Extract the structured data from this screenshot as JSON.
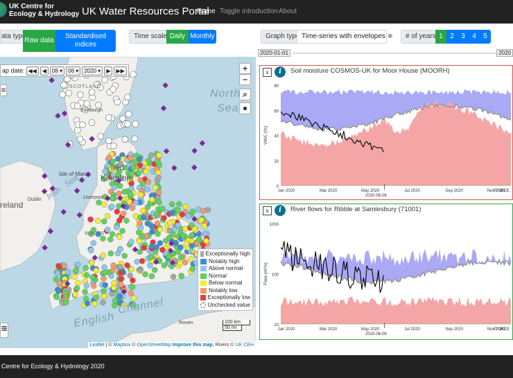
{
  "brand": {
    "line1": "UK Centre for",
    "line2": "Ecology & Hydrology"
  },
  "title": "UK Water Resources Portal",
  "nav": {
    "home": "Home",
    "toggle": "Toggle introduction",
    "about": "About"
  },
  "controls": {
    "data_type_label": "ata type:",
    "raw": "Raw data",
    "standardised": "Standardised indices",
    "timescale_label": "Time scale:",
    "daily": "Daily",
    "monthly": "Monthly",
    "graph_type_label": "Graph type:",
    "graph_type_value": "Time-series with envelopes ≑",
    "years_label": "# of years:",
    "years": [
      "1",
      "2",
      "3",
      "4",
      "5"
    ]
  },
  "date_range": {
    "start": "2020-01-01",
    "end": "2020"
  },
  "map": {
    "date_label": "ap date:",
    "day": "06 ▾",
    "month": "06 ▾",
    "year": "2020 ▾",
    "labels": {
      "north": "North",
      "sea": "Sea",
      "scotland": "SCOTLAND",
      "edinburgh": "Edinburgh",
      "isle_of_man": "Isle of Man",
      "irish": "Irish",
      "sea2": "Sea",
      "dublin": "Dublin",
      "ireland": "reland",
      "wales": "WALES",
      "english": "English",
      "channel": "Channel",
      "rouen": "Rouen",
      "united": "ited",
      "kingdom": "Kingdom",
      "liverpool": "Liverpool"
    },
    "scale": {
      "km": "100 km",
      "mi": "50 mi"
    },
    "attribution": {
      "leaflet": "Leaflet",
      "sep1": " | © ",
      "mapbox": "Mapbox",
      "sep2": " © ",
      "osm": "OpenStreetMap",
      "improve": "Improve this map",
      "rivers": ", Rivers © ",
      "ceh": "UK CEH"
    }
  },
  "legend": [
    {
      "label": "Exceptionally high",
      "color": "#a6a6a6"
    },
    {
      "label": "Notably high",
      "color": "#3e8ed1"
    },
    {
      "label": "Above normal",
      "color": "#8fc7ee"
    },
    {
      "label": "Normal",
      "color": "#5fd35f"
    },
    {
      "label": "Below normal",
      "color": "#f2ec3a"
    },
    {
      "label": "Notably low",
      "color": "#f59a6b"
    },
    {
      "label": "Exceptionally low",
      "color": "#e83c3c"
    },
    {
      "label": "Unchecked value",
      "color": "#ffffff"
    }
  ],
  "plots": [
    {
      "title": "Soil moisture COSMOS-UK for Moor House (MOORH)",
      "ylabel": "VWC (%)",
      "yticks": [
        "80",
        "60",
        "40",
        "20",
        "0"
      ],
      "xticks": [
        "Jan 2020",
        "Mar 2020",
        "May 2020",
        "Jul 2020",
        "Sep 2020",
        "Nov 2020"
      ],
      "marker": "2020-06-06",
      "copyright": "© UKCE",
      "border": "#d9534f"
    },
    {
      "title": "River flows for Ribble at Samlesbury (71001)",
      "ylabel": "Flow (m³/s)",
      "yticks": [
        "1000",
        "100",
        "10"
      ],
      "xticks": [
        "Jan 2020",
        "Mar 2020",
        "May 2020",
        "Jul 2020",
        "Sep 2020",
        "Nov 2020"
      ],
      "marker": "2020-06-06",
      "copyright": "© UKCE",
      "border": "#28a745"
    }
  ],
  "footer": "Centre for Ecology & Hydrology 2020"
}
